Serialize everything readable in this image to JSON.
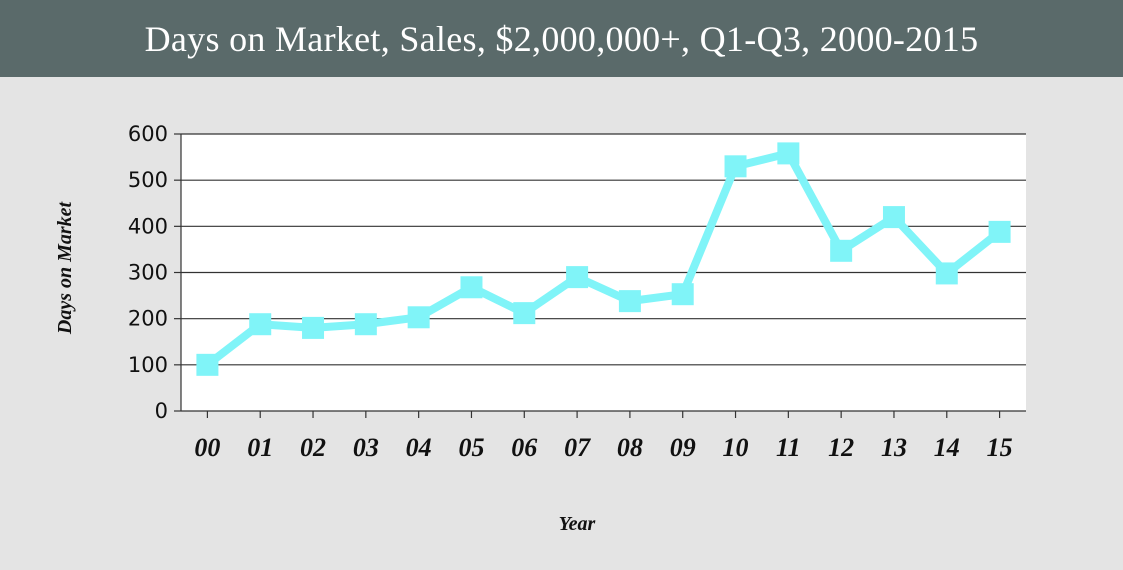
{
  "header": {
    "title": "Days on Market, Sales, $2,000,000+, Q1-Q3, 2000-2015"
  },
  "colors": {
    "header_bg": "#5a6a6a",
    "page_bg": "#e4e4e4",
    "plot_bg": "#ffffff",
    "series": "#80f4f8",
    "gridline": "#333333"
  },
  "chart_data": {
    "type": "line",
    "title": "Days on Market, Sales, $2,000,000+, Q1-Q3, 2000-2015",
    "xlabel": "Year",
    "ylabel": "Days on Market",
    "categories": [
      "00",
      "01",
      "02",
      "03",
      "04",
      "05",
      "06",
      "07",
      "08",
      "09",
      "10",
      "11",
      "12",
      "13",
      "14",
      "15"
    ],
    "series": [
      {
        "values": [
          100,
          188,
          180,
          188,
          203,
          268,
          212,
          290,
          238,
          253,
          530,
          558,
          347,
          420,
          298,
          388
        ]
      }
    ],
    "ylim": [
      0,
      600
    ],
    "yticks": [
      0,
      100,
      200,
      300,
      400,
      500,
      600
    ],
    "grid": true,
    "legend": "none",
    "marker": "square"
  }
}
